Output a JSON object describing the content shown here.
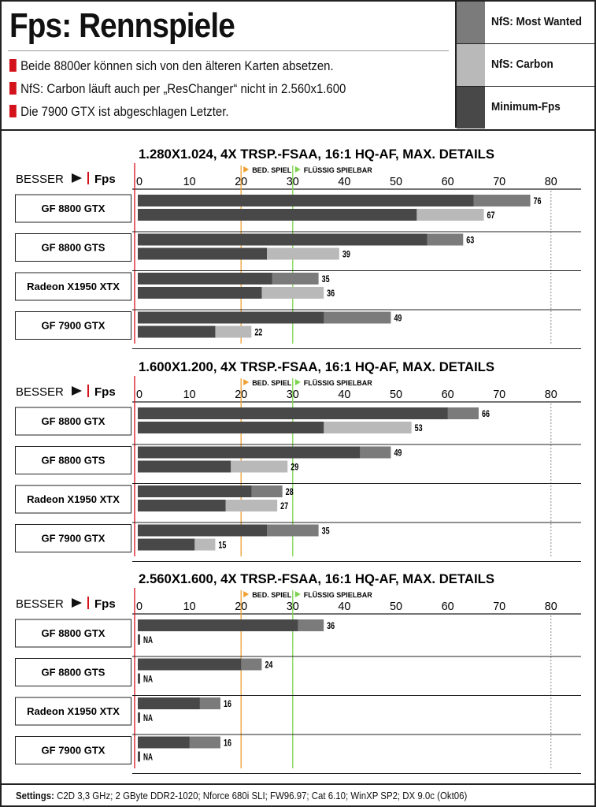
{
  "header": {
    "title": "Fps: Rennspiele",
    "bullets": [
      "Beide 8800er können sich von den älteren Karten absetzen.",
      "NfS: Carbon läuft auch per „ResChanger“ nicht in 2.560x1.600",
      "Die 7900 GTX ist abgeschlagen Letzter."
    ]
  },
  "legend": [
    {
      "label": "NfS: Most Wanted",
      "color": "#7b7b7b"
    },
    {
      "label": "NfS: Carbon",
      "color": "#b9b9b9"
    },
    {
      "label": "Minimum-Fps",
      "color": "#484848"
    }
  ],
  "colors": {
    "accent_red": "#d4121b",
    "marker_orange": "#f0a030",
    "marker_green": "#7ed34f"
  },
  "footer": {
    "label": "Settings:",
    "text": "C2D 3,3 GHz; 2 GByte DDR2-1020; Nforce 680i SLI; FW96.97; Cat 6.10; WinXP SP2; DX 9.0c (Okt06)"
  },
  "chart_data": [
    {
      "type": "bar",
      "title": "1.280X1.024, 4X TRSP.-FSAA, 16:1 HQ-AF, MAX. DETAILS",
      "axis_prefix": "BESSER",
      "ylabel": "Fps",
      "ticks": [
        0,
        10,
        20,
        30,
        40,
        50,
        60,
        70,
        80
      ],
      "markers": [
        {
          "label": "BED. SPIEL",
          "value": 20
        },
        {
          "label": "FLÜSSIG SPIELBAR",
          "value": 30
        }
      ],
      "categories": [
        "GF 8800 GTX",
        "GF 8800 GTS",
        "Radeon X1950 XTX",
        "GF 7900 GTX"
      ],
      "series": [
        {
          "name": "NfS: Most Wanted",
          "values": [
            76,
            63,
            35,
            49
          ],
          "min": [
            65,
            56,
            26,
            36
          ]
        },
        {
          "name": "NfS: Carbon",
          "values": [
            67,
            39,
            36,
            22
          ],
          "min": [
            54,
            25,
            24,
            15
          ]
        }
      ]
    },
    {
      "type": "bar",
      "title": "1.600X1.200, 4X TRSP.-FSAA, 16:1 HQ-AF, MAX. DETAILS",
      "axis_prefix": "BESSER",
      "ylabel": "Fps",
      "ticks": [
        0,
        10,
        20,
        30,
        40,
        50,
        60,
        70,
        80
      ],
      "markers": [
        {
          "label": "BED. SPIEL",
          "value": 20
        },
        {
          "label": "FLÜSSIG SPIELBAR",
          "value": 30
        }
      ],
      "categories": [
        "GF 8800 GTX",
        "GF 8800 GTS",
        "Radeon X1950 XTX",
        "GF 7900 GTX"
      ],
      "series": [
        {
          "name": "NfS: Most Wanted",
          "values": [
            66,
            49,
            28,
            35
          ],
          "min": [
            60,
            43,
            22,
            25
          ]
        },
        {
          "name": "NfS: Carbon",
          "values": [
            53,
            29,
            27,
            15
          ],
          "min": [
            36,
            18,
            17,
            11
          ]
        }
      ]
    },
    {
      "type": "bar",
      "title": "2.560X1.600, 4X TRSP.-FSAA, 16:1 HQ-AF, MAX. DETAILS",
      "axis_prefix": "BESSER",
      "ylabel": "Fps",
      "ticks": [
        0,
        10,
        20,
        30,
        40,
        50,
        60,
        70,
        80
      ],
      "markers": [
        {
          "label": "BED. SPIEL",
          "value": 20
        },
        {
          "label": "FLÜSSIG SPIELBAR",
          "value": 30
        }
      ],
      "categories": [
        "GF 8800 GTX",
        "GF 8800 GTS",
        "Radeon X1950 XTX",
        "GF 7900 GTX"
      ],
      "series": [
        {
          "name": "NfS: Most Wanted",
          "values": [
            36,
            24,
            16,
            16
          ],
          "min": [
            31,
            20,
            12,
            10
          ]
        },
        {
          "name": "NfS: Carbon",
          "values": [
            "NA",
            "NA",
            "NA",
            "NA"
          ],
          "min": [
            null,
            null,
            null,
            null
          ]
        }
      ]
    }
  ]
}
